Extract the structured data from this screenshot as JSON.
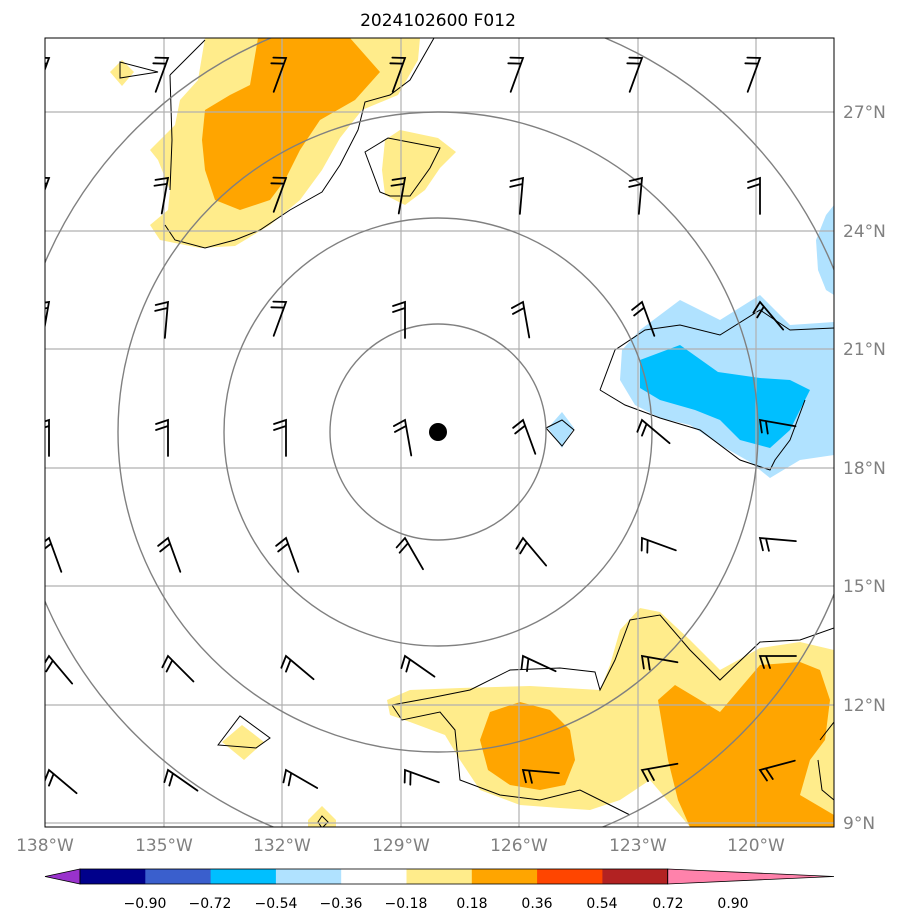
{
  "title": "2024102600 F012",
  "lon_labels": [
    "138°W",
    "135°W",
    "132°W",
    "129°W",
    "126°W",
    "123°W",
    "120°W"
  ],
  "lat_labels": [
    "27°N",
    "24°N",
    "21°N",
    "18°N",
    "15°N",
    "12°N",
    "9°N"
  ],
  "colorbar": {
    "ticks": [
      "−0.90",
      "−0.72",
      "−0.54",
      "−0.36",
      "−0.18",
      "0.18",
      "0.36",
      "0.54",
      "0.72",
      "0.90"
    ],
    "colors": [
      "#9932cc",
      "#00008b",
      "#3a5fcd",
      "#00bfff",
      "#b0e2ff",
      "#ffffff",
      "#ffec8b",
      "#ffa500",
      "#ff4500",
      "#b22222",
      "#ff82ab"
    ]
  },
  "storm_center": {
    "lon": -128.1,
    "lat": 18.9
  }
}
